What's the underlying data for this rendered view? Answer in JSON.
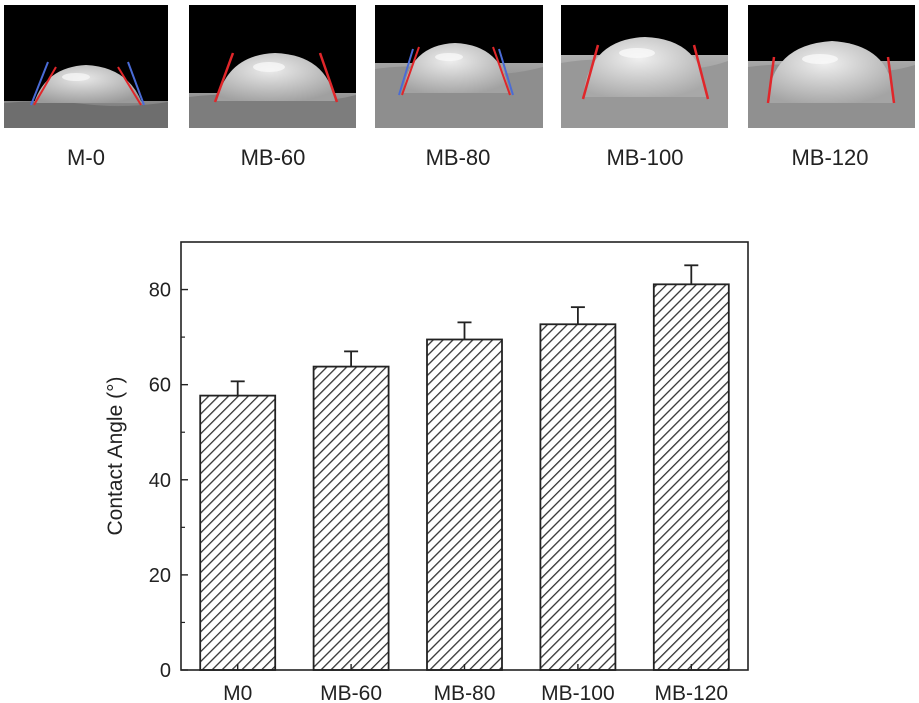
{
  "photos": [
    {
      "label": "M-0"
    },
    {
      "label": "MB-60"
    },
    {
      "label": "MB-80"
    },
    {
      "label": "MB-100"
    },
    {
      "label": "MB-120"
    }
  ],
  "colors": {
    "tangent_red": "#e0262a",
    "tangent_blue": "#4a6bd6",
    "bar_hatch": "#333333",
    "axis": "#222222"
  },
  "chart_data": {
    "type": "bar",
    "categories": [
      "M0",
      "MB-60",
      "MB-80",
      "MB-100",
      "MB-120"
    ],
    "values": [
      57.7,
      63.8,
      69.5,
      72.7,
      81.1
    ],
    "errors": [
      3.0,
      3.2,
      3.6,
      3.6,
      4.0
    ],
    "ylabel": "Contact Angle (°)",
    "xlabel": "",
    "ylim": [
      0,
      90
    ],
    "yticks": [
      0,
      20,
      40,
      60,
      80
    ],
    "bar_fill": "diagonal-hatch",
    "grid": false,
    "legend": "none"
  }
}
